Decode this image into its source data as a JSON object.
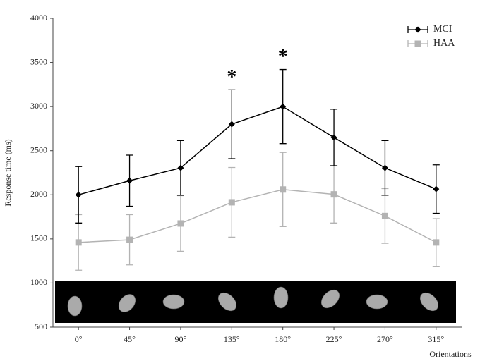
{
  "chart_data": {
    "type": "line",
    "y_label": "Response time (ms)",
    "x_label": "Orientations",
    "categories": [
      "0°",
      "45°",
      "90°",
      "135°",
      "180°",
      "225°",
      "270°",
      "315°"
    ],
    "series": [
      {
        "name": "MCI",
        "color": "#000000",
        "marker": "diamond",
        "values": [
          2000,
          2160,
          2305,
          2800,
          3000,
          2650,
          2305,
          2065
        ],
        "errors": [
          320,
          290,
          310,
          390,
          420,
          320,
          310,
          275
        ]
      },
      {
        "name": "HAA",
        "color": "#b3b3b3",
        "marker": "square",
        "values": [
          1460,
          1490,
          1675,
          1915,
          2060,
          2005,
          1760,
          1460
        ],
        "errors": [
          315,
          285,
          315,
          395,
          420,
          325,
          310,
          270
        ]
      }
    ],
    "annotations": [
      {
        "text": "*",
        "category": "135°"
      },
      {
        "text": "*",
        "category": "180°"
      }
    ],
    "ylim": [
      500,
      4000
    ],
    "yticks": [
      500,
      1000,
      1500,
      2000,
      2500,
      3000,
      3500,
      4000
    ],
    "legend": "upper right"
  }
}
